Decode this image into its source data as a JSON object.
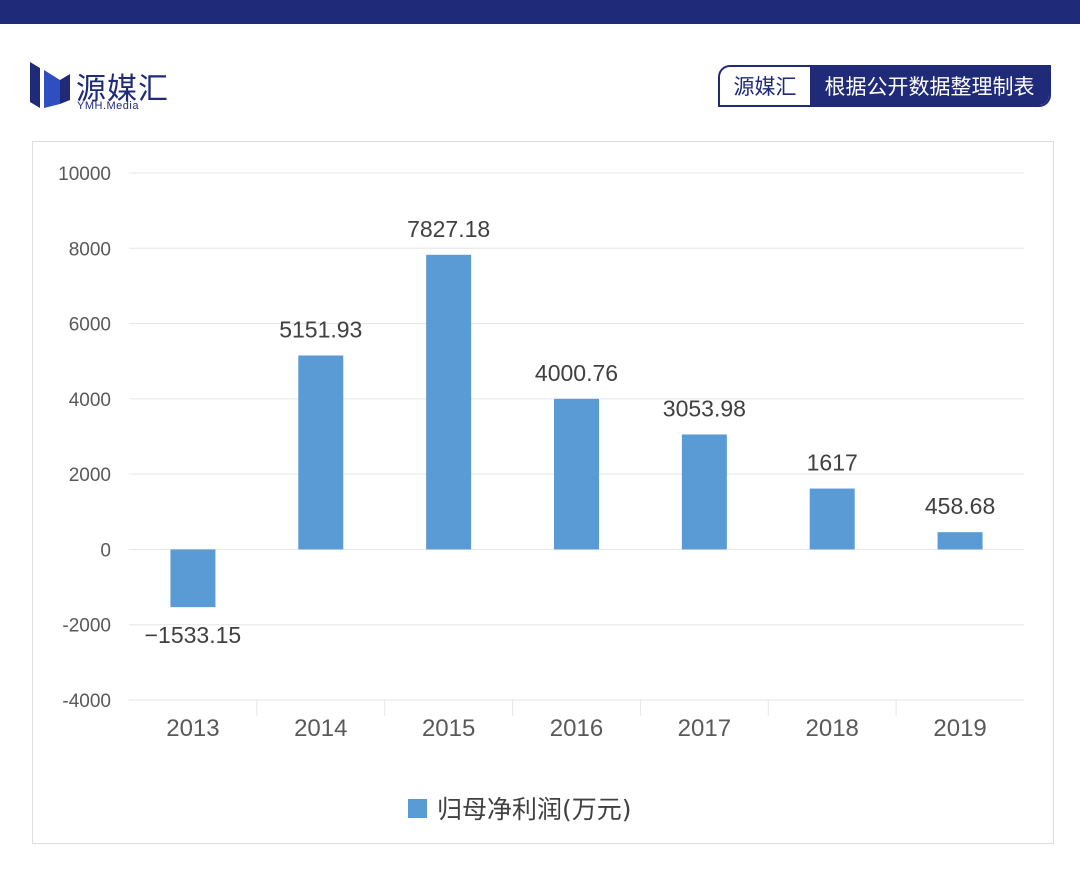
{
  "header": {
    "logo_text": "源媒汇",
    "logo_sub": "YMH.Media",
    "source_left": "源媒汇",
    "source_right": "根据公开数据整理制表",
    "accent_color": "#1f2a78"
  },
  "chart_data": {
    "type": "bar",
    "categories": [
      "2013",
      "2014",
      "2015",
      "2016",
      "2017",
      "2018",
      "2019"
    ],
    "series": [
      {
        "name": "归母净利润(万元)",
        "values": [
          -1533.15,
          5151.93,
          7827.18,
          4000.76,
          3053.98,
          1617,
          458.68
        ],
        "labels": [
          "−1533.15",
          "5151.93",
          "7827.18",
          "4000.76",
          "3053.98",
          "1617",
          "458.68"
        ],
        "color": "#5b9bd5"
      }
    ],
    "yticks": [
      "10000",
      "8000",
      "6000",
      "4000",
      "2000",
      "0",
      "-2000",
      "-4000"
    ],
    "ylim": [
      -4000,
      10000
    ],
    "grid": true,
    "legend_position": "bottom"
  }
}
